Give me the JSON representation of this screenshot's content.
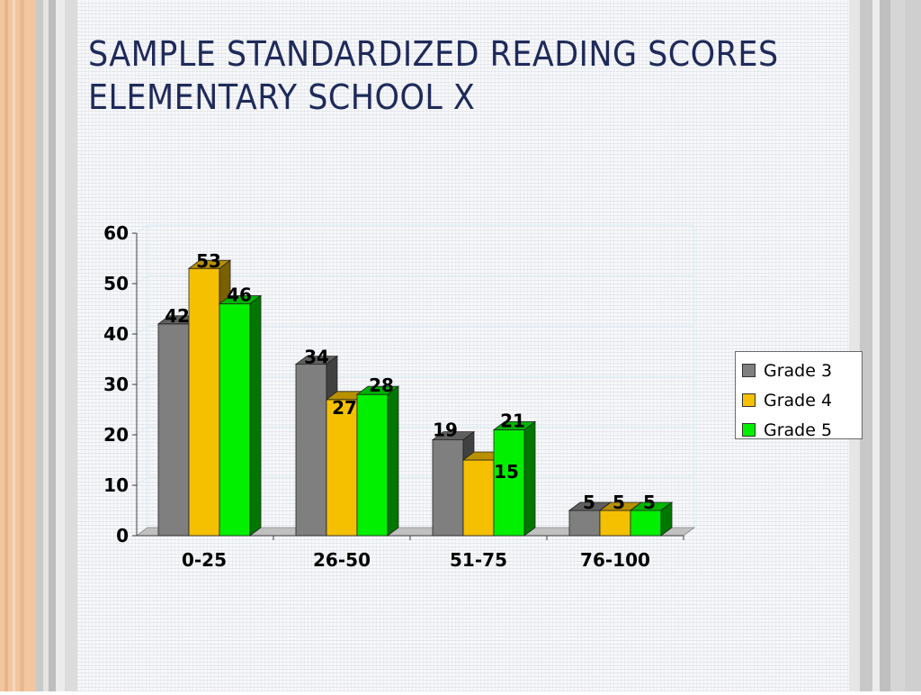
{
  "title": {
    "line1": "SAMPLE STANDARDIZED READING SCORES",
    "line2": "ELEMENTARY SCHOOL X"
  },
  "colors": {
    "grade3": "#7f7f7f",
    "grade4": "#f5c000",
    "grade5": "#00f000"
  },
  "chart_data": {
    "type": "bar",
    "categories": [
      "0-25",
      "26-50",
      "51-75",
      "76-100"
    ],
    "series": [
      {
        "name": "Grade 3",
        "values": [
          42,
          34,
          19,
          5
        ]
      },
      {
        "name": "Grade 4",
        "values": [
          53,
          27,
          15,
          5
        ]
      },
      {
        "name": "Grade 5",
        "values": [
          46,
          28,
          21,
          5
        ]
      }
    ],
    "ylim": [
      0,
      60
    ],
    "yticks": [
      0,
      10,
      20,
      30,
      40,
      50,
      60
    ],
    "grid": true,
    "legend": "right",
    "style": "3d-clustered-column"
  }
}
